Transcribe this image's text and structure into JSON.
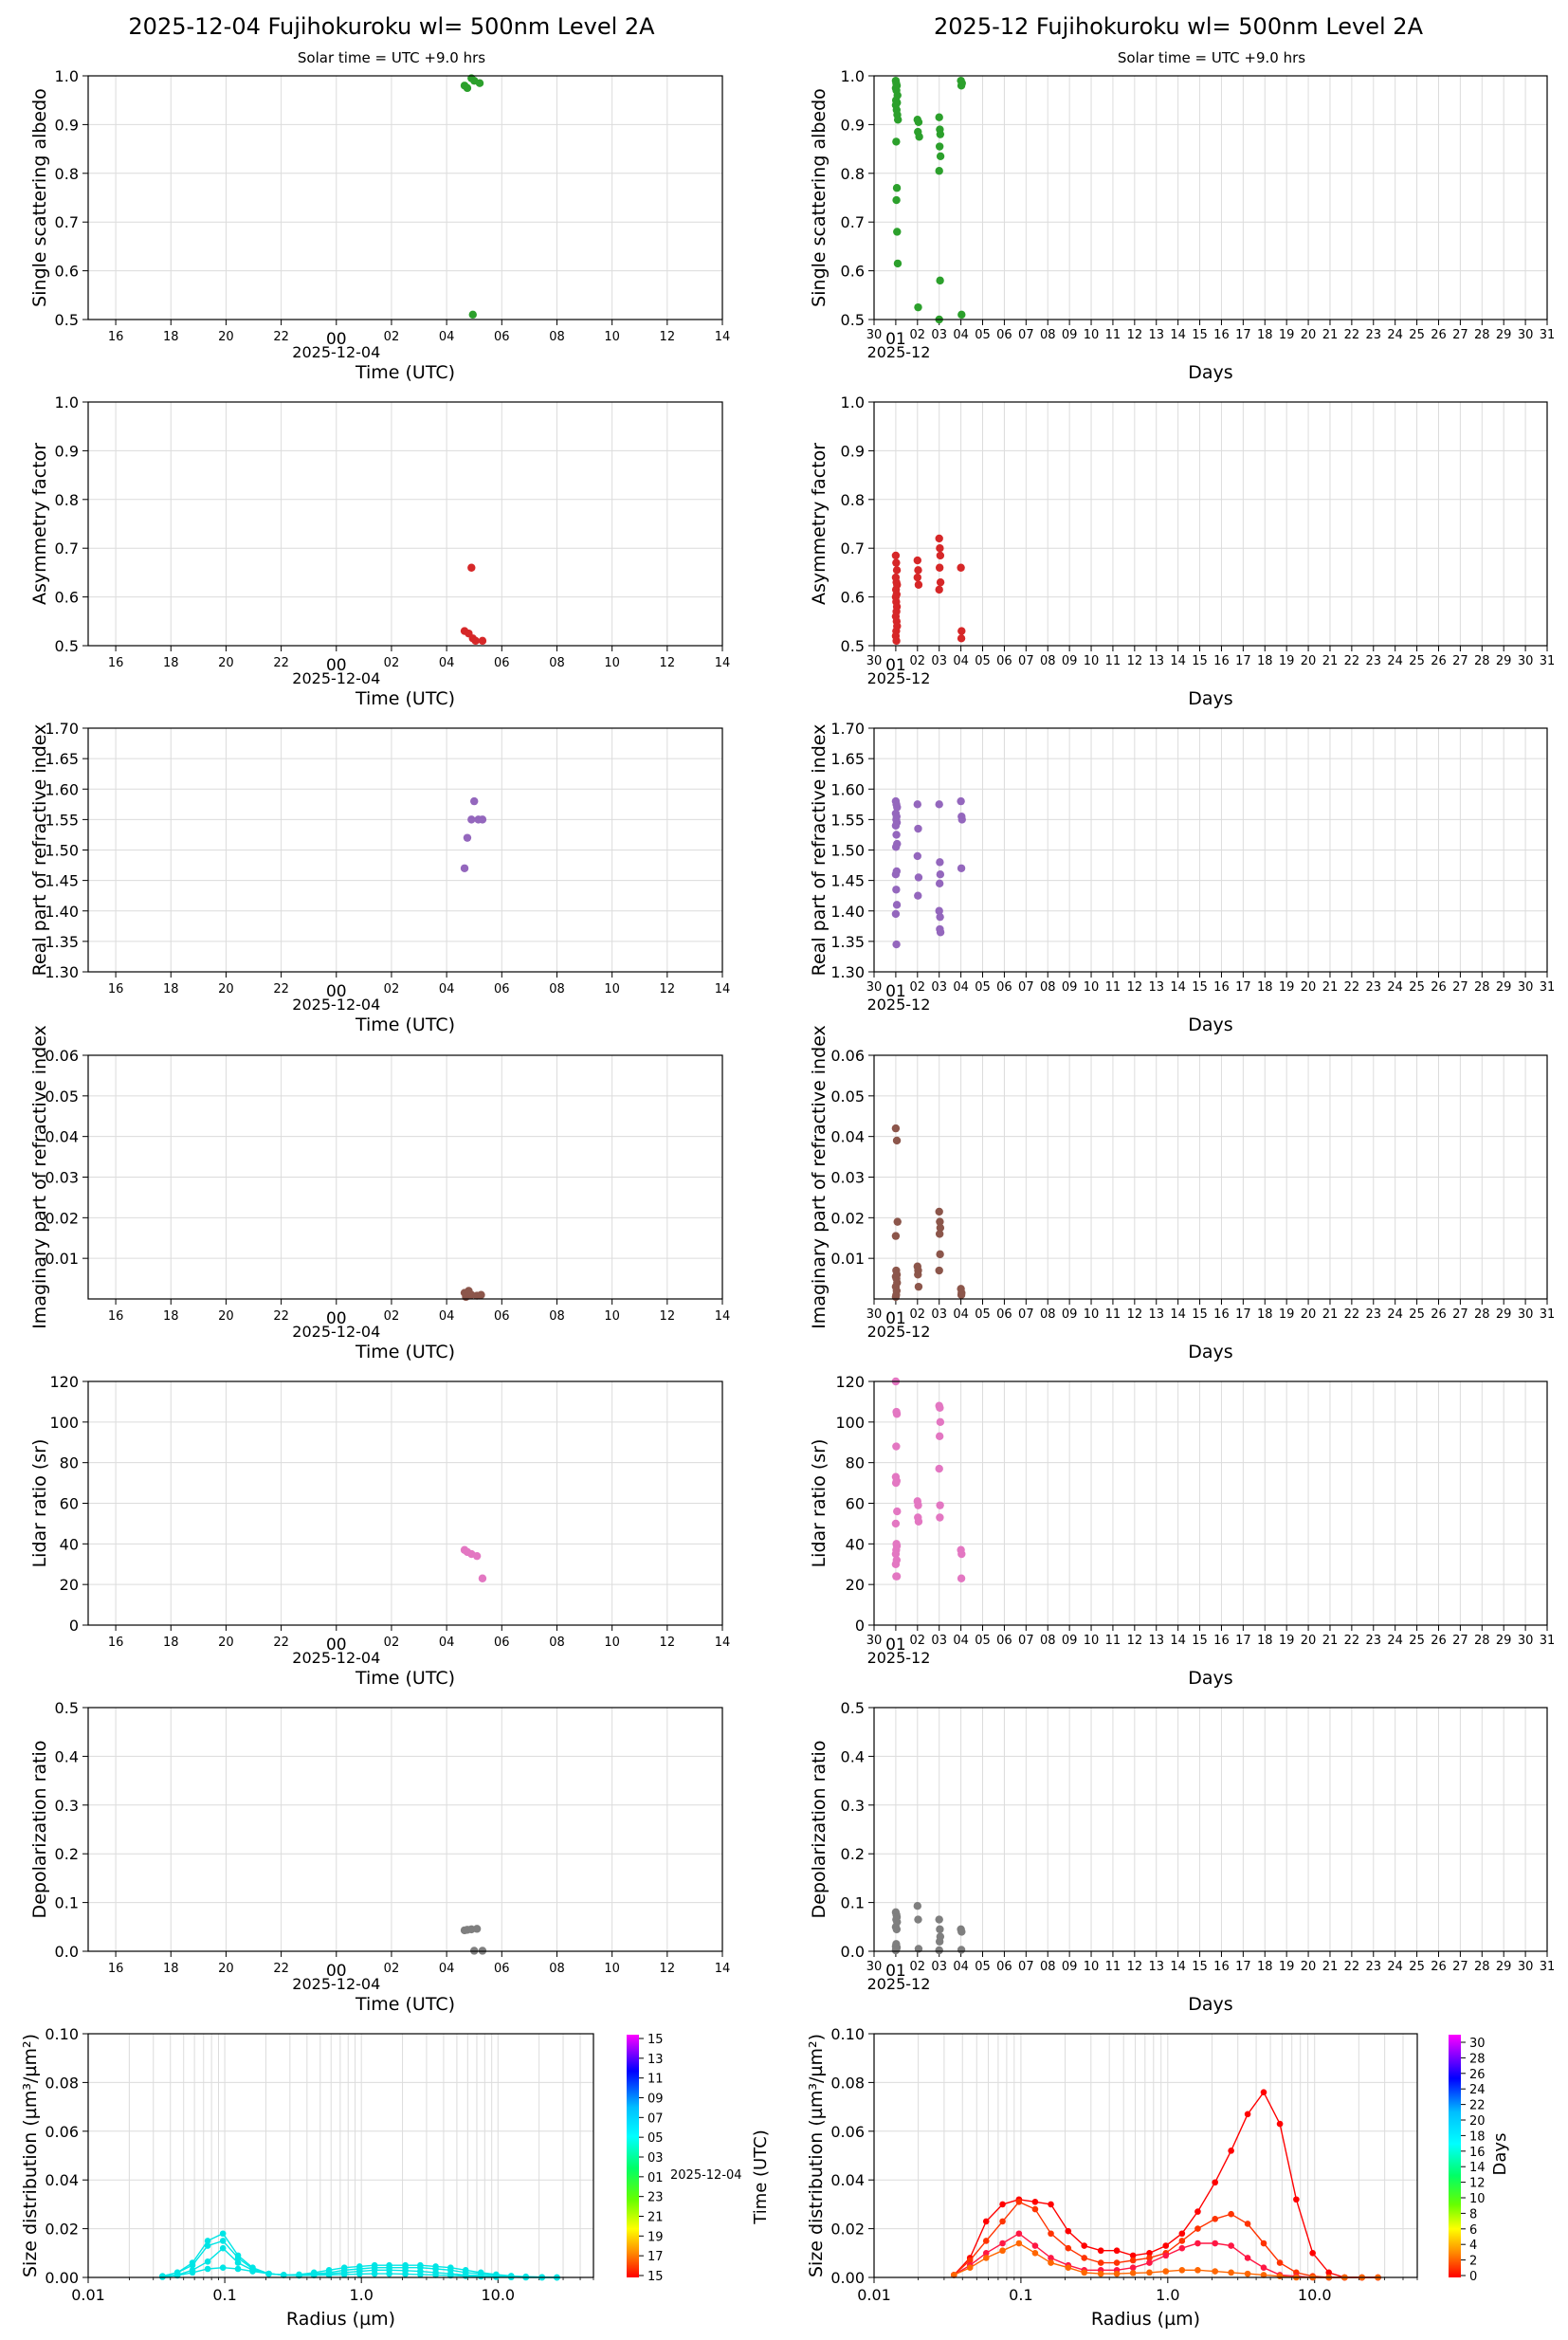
{
  "left_title": "2025-12-04  Fujihokuroku  wl= 500nm  Level 2A",
  "right_title": "2025-12  Fujihokuroku  wl= 500nm  Level 2A",
  "left_subtitle": "Solar time = UTC +9.0 hrs",
  "right_subtitle": "Solar time = UTC +9.0 hrs",
  "left_date_label": "2025-12-04",
  "right_month_label": "2025-12",
  "left_xlabel": "Time (UTC)",
  "right_xlabel": "Days",
  "hour_ticks": [
    "16",
    "18",
    "20",
    "22",
    "00",
    "02",
    "04",
    "06",
    "08",
    "10",
    "12",
    "14"
  ],
  "day_ticks": [
    "30",
    "01",
    "02",
    "03",
    "04",
    "05",
    "06",
    "07",
    "08",
    "09",
    "10",
    "11",
    "12",
    "13",
    "14",
    "15",
    "16",
    "17",
    "18",
    "19",
    "20",
    "21",
    "22",
    "23",
    "24",
    "25",
    "26",
    "27",
    "28",
    "29",
    "30",
    "31"
  ],
  "colors": {
    "ssa": "#2ca02c",
    "asy": "#d62728",
    "rri": "#9467bd",
    "iri": "#8c564b",
    "lidar": "#e377c2",
    "depol": "#7f7f7f",
    "cyan": "#00e5e5"
  },
  "chart_data": [
    {
      "id": "left-ssa",
      "type": "scatter",
      "ylabel": "Single scattering albedo",
      "ylim": [
        0.5,
        1.0
      ],
      "yticks": [
        "0.5",
        "0.6",
        "0.7",
        "0.8",
        "0.9",
        "1.0"
      ],
      "x_hours": [
        4.65,
        4.75,
        4.9,
        5.0,
        5.2,
        4.95
      ],
      "values": [
        0.98,
        0.975,
        0.995,
        0.99,
        0.985,
        0.51
      ]
    },
    {
      "id": "right-ssa",
      "type": "scatter",
      "ylabel": "Single scattering albedo",
      "ylim": [
        0.5,
        1.0
      ],
      "yticks": [
        "0.5",
        "0.6",
        "0.7",
        "0.8",
        "0.9",
        "1.0"
      ],
      "x_days": [
        1.0,
        1.02,
        1.05,
        1.0,
        1.03,
        1.08,
        1.01,
        1.06,
        1.0,
        1.04,
        1.07,
        1.1,
        1.02,
        1.05,
        1.03,
        1.06,
        1.09,
        2.0,
        2.05,
        2.02,
        2.08,
        2.03,
        3.0,
        3.03,
        3.05,
        3.02,
        3.06,
        3.0,
        3.04,
        3.0,
        4.0,
        4.05,
        4.02,
        4.03
      ],
      "values": [
        0.99,
        0.985,
        0.98,
        0.975,
        0.97,
        0.96,
        0.95,
        0.945,
        0.94,
        0.93,
        0.92,
        0.91,
        0.865,
        0.77,
        0.745,
        0.68,
        0.615,
        0.91,
        0.905,
        0.885,
        0.875,
        0.525,
        0.915,
        0.89,
        0.88,
        0.855,
        0.835,
        0.805,
        0.58,
        0.5,
        0.99,
        0.985,
        0.98,
        0.51
      ]
    },
    {
      "id": "left-asy",
      "type": "scatter",
      "ylabel": "Asymmetry factor",
      "ylim": [
        0.5,
        1.0
      ],
      "yticks": [
        "0.5",
        "0.6",
        "0.7",
        "0.8",
        "0.9",
        "1.0"
      ],
      "x_hours": [
        4.65,
        4.8,
        4.95,
        5.05,
        5.3,
        4.9
      ],
      "values": [
        0.53,
        0.525,
        0.515,
        0.51,
        0.51,
        0.66
      ]
    },
    {
      "id": "right-asy",
      "type": "scatter",
      "ylabel": "Asymmetry factor",
      "ylim": [
        0.5,
        1.0
      ],
      "yticks": [
        "0.5",
        "0.6",
        "0.7",
        "0.8",
        "0.9",
        "1.0"
      ],
      "x_days": [
        1.0,
        1.02,
        1.05,
        1.0,
        1.03,
        1.06,
        1.01,
        1.04,
        1.0,
        1.02,
        1.05,
        1.03,
        1.0,
        1.04,
        1.06,
        1.02,
        1.0,
        1.03,
        2.0,
        2.03,
        2.0,
        2.05,
        3.0,
        3.03,
        3.05,
        3.02,
        3.06,
        3.0,
        4.0,
        4.03,
        4.02
      ],
      "values": [
        0.685,
        0.67,
        0.655,
        0.64,
        0.63,
        0.625,
        0.615,
        0.605,
        0.6,
        0.59,
        0.58,
        0.57,
        0.56,
        0.55,
        0.54,
        0.53,
        0.52,
        0.51,
        0.675,
        0.655,
        0.64,
        0.625,
        0.72,
        0.7,
        0.685,
        0.66,
        0.63,
        0.615,
        0.66,
        0.53,
        0.515
      ]
    },
    {
      "id": "left-rri",
      "type": "scatter",
      "ylabel": "Real part of refractive index",
      "ylim": [
        1.3,
        1.7
      ],
      "yticks": [
        "1.30",
        "1.35",
        "1.40",
        "1.45",
        "1.50",
        "1.55",
        "1.60",
        "1.65",
        "1.70"
      ],
      "x_hours": [
        4.65,
        4.75,
        4.9,
        5.0,
        5.15,
        5.3
      ],
      "values": [
        1.47,
        1.52,
        1.55,
        1.58,
        1.55,
        1.55
      ]
    },
    {
      "id": "right-rri",
      "type": "scatter",
      "ylabel": "Real part of refractive index",
      "ylim": [
        1.3,
        1.7
      ],
      "yticks": [
        "1.30",
        "1.35",
        "1.40",
        "1.45",
        "1.50",
        "1.55",
        "1.60",
        "1.65",
        "1.70"
      ],
      "x_days": [
        1.0,
        1.03,
        1.06,
        1.0,
        1.04,
        1.02,
        1.05,
        1.0,
        1.03,
        1.06,
        1.01,
        1.04,
        1.0,
        1.02,
        1.05,
        1.0,
        1.03,
        2.0,
        2.03,
        2.0,
        2.05,
        2.02,
        3.0,
        3.03,
        3.05,
        3.02,
        3.0,
        3.04,
        3.03,
        3.06,
        4.0,
        4.03,
        4.05,
        4.02
      ],
      "values": [
        1.58,
        1.575,
        1.57,
        1.56,
        1.555,
        1.55,
        1.545,
        1.54,
        1.525,
        1.51,
        1.505,
        1.465,
        1.46,
        1.435,
        1.41,
        1.395,
        1.345,
        1.575,
        1.535,
        1.49,
        1.455,
        1.425,
        1.575,
        1.48,
        1.46,
        1.445,
        1.4,
        1.39,
        1.37,
        1.365,
        1.58,
        1.555,
        1.55,
        1.47
      ]
    },
    {
      "id": "left-iri",
      "type": "scatter",
      "ylabel": "Imaginary part of refractive index",
      "ylim": [
        0,
        0.06
      ],
      "yticks": [
        "0.01",
        "0.02",
        "0.03",
        "0.04",
        "0.05",
        "0.06"
      ],
      "x_hours": [
        4.65,
        4.8,
        4.9,
        5.1,
        5.25,
        4.7
      ],
      "values": [
        0.0015,
        0.002,
        0.001,
        0.0008,
        0.001,
        0.0005
      ]
    },
    {
      "id": "right-iri",
      "type": "scatter",
      "ylabel": "Imaginary part of refractive index",
      "ylim": [
        0,
        0.06
      ],
      "yticks": [
        "0.01",
        "0.02",
        "0.03",
        "0.04",
        "0.05",
        "0.06"
      ],
      "x_days": [
        1.0,
        1.05,
        1.0,
        1.08,
        1.02,
        1.05,
        1.0,
        1.03,
        1.06,
        1.0,
        1.04,
        1.02,
        1.0,
        2.0,
        2.03,
        2.02,
        2.05,
        3.0,
        3.03,
        3.05,
        3.02,
        3.04,
        3.0,
        4.0,
        4.03,
        4.02
      ],
      "values": [
        0.042,
        0.039,
        0.0155,
        0.019,
        0.007,
        0.006,
        0.0055,
        0.005,
        0.004,
        0.003,
        0.002,
        0.001,
        0.0005,
        0.008,
        0.007,
        0.006,
        0.003,
        0.0215,
        0.019,
        0.0175,
        0.016,
        0.011,
        0.007,
        0.0025,
        0.0015,
        0.001
      ]
    },
    {
      "id": "left-lidar",
      "type": "scatter",
      "ylabel": "Lidar ratio (sr)",
      "ylim": [
        0,
        120
      ],
      "yticks": [
        "0",
        "20",
        "40",
        "60",
        "80",
        "100",
        "120"
      ],
      "x_hours": [
        4.65,
        4.75,
        4.9,
        5.1,
        5.3
      ],
      "values": [
        37,
        36,
        35,
        34,
        23
      ]
    },
    {
      "id": "right-lidar",
      "type": "scatter",
      "ylabel": "Lidar ratio (sr)",
      "ylim": [
        0,
        120
      ],
      "yticks": [
        "0",
        "20",
        "40",
        "60",
        "80",
        "100",
        "120"
      ],
      "x_days": [
        1.0,
        1.03,
        1.05,
        1.02,
        1.0,
        1.04,
        1.01,
        1.06,
        1.0,
        1.03,
        1.05,
        1.02,
        1.0,
        1.04,
        1.0,
        1.02,
        1.05,
        2.0,
        2.03,
        2.02,
        2.05,
        3.0,
        3.03,
        3.05,
        3.02,
        3.0,
        3.04,
        3.03,
        4.0,
        4.03,
        4.02
      ],
      "values": [
        120,
        105,
        104,
        88,
        73,
        71,
        70,
        56,
        50,
        40,
        39,
        37,
        35,
        32,
        30,
        24,
        24,
        61,
        59,
        53,
        51,
        108,
        107,
        100,
        93,
        77,
        59,
        53,
        37,
        35,
        23
      ]
    },
    {
      "id": "left-depol",
      "type": "scatter",
      "ylabel": "Depolarization ratio",
      "ylim": [
        0,
        0.5
      ],
      "yticks": [
        "0.0",
        "0.1",
        "0.2",
        "0.3",
        "0.4",
        "0.5"
      ],
      "x_hours": [
        4.65,
        4.75,
        4.9,
        5.1,
        5.0,
        5.3
      ],
      "values": [
        0.043,
        0.044,
        0.045,
        0.046,
        0.001,
        0.001
      ]
    },
    {
      "id": "right-depol",
      "type": "scatter",
      "ylabel": "Depolarization ratio",
      "ylim": [
        0,
        0.5
      ],
      "yticks": [
        "0.0",
        "0.1",
        "0.2",
        "0.3",
        "0.4",
        "0.5"
      ],
      "x_days": [
        1.0,
        1.03,
        1.05,
        1.02,
        1.06,
        1.0,
        1.04,
        1.02,
        1.0,
        1.05,
        1.03,
        1.0,
        2.0,
        2.03,
        2.05,
        3.0,
        3.03,
        3.05,
        3.02,
        3.0,
        4.0,
        4.03,
        4.02
      ],
      "values": [
        0.08,
        0.075,
        0.07,
        0.065,
        0.06,
        0.05,
        0.045,
        0.015,
        0.01,
        0.008,
        0.005,
        0.002,
        0.093,
        0.065,
        0.005,
        0.065,
        0.045,
        0.03,
        0.02,
        0.002,
        0.045,
        0.04,
        0.003
      ]
    },
    {
      "id": "left-size",
      "type": "line",
      "xscale": "log",
      "ylabel": "Size distribution (µm³/µm²)",
      "xlabel": "Radius (µm)",
      "xlim": [
        0.01,
        50
      ],
      "ylim": [
        0,
        0.1
      ],
      "xticks": [
        "0.01",
        "0.1",
        "1.0",
        "10.0"
      ],
      "yticks": [
        "0.00",
        "0.02",
        "0.04",
        "0.06",
        "0.08",
        "0.10"
      ],
      "x": [
        0.035,
        0.045,
        0.058,
        0.075,
        0.097,
        0.125,
        0.16,
        0.21,
        0.27,
        0.35,
        0.45,
        0.58,
        0.75,
        0.97,
        1.25,
        1.6,
        2.1,
        2.7,
        3.5,
        4.5,
        5.8,
        7.5,
        9.7,
        12.5,
        16,
        21,
        27
      ],
      "series": [
        {
          "values": [
            0.0005,
            0.002,
            0.006,
            0.015,
            0.018,
            0.009,
            0.004,
            0.0015,
            0.001,
            0.0012,
            0.002,
            0.003,
            0.004,
            0.0045,
            0.005,
            0.005,
            0.005,
            0.005,
            0.0045,
            0.004,
            0.003,
            0.002,
            0.0012,
            0.0006,
            0.0003,
            0.0001,
            0.0
          ]
        },
        {
          "values": [
            0.0005,
            0.002,
            0.005,
            0.013,
            0.015,
            0.008,
            0.0035,
            0.0015,
            0.001,
            0.001,
            0.0015,
            0.002,
            0.003,
            0.0035,
            0.004,
            0.004,
            0.004,
            0.004,
            0.0035,
            0.003,
            0.002,
            0.0015,
            0.001,
            0.0005,
            0.0002,
            0.0001,
            0.0
          ]
        },
        {
          "values": [
            0.0003,
            0.001,
            0.003,
            0.0065,
            0.012,
            0.006,
            0.003,
            0.0015,
            0.001,
            0.0008,
            0.0012,
            0.0015,
            0.002,
            0.0025,
            0.003,
            0.003,
            0.0028,
            0.0025,
            0.002,
            0.0015,
            0.001,
            0.0008,
            0.0005,
            0.0003,
            0.0001,
            0.0,
            0.0
          ]
        },
        {
          "values": [
            0.0002,
            0.0008,
            0.002,
            0.0035,
            0.004,
            0.0035,
            0.0025,
            0.0015,
            0.001,
            0.0008,
            0.0009,
            0.001,
            0.0012,
            0.0014,
            0.0015,
            0.0015,
            0.0014,
            0.0012,
            0.001,
            0.0008,
            0.0006,
            0.0004,
            0.0002,
            0.0001,
            0.0,
            0.0,
            0.0
          ]
        }
      ]
    },
    {
      "id": "right-size",
      "type": "line",
      "xscale": "log",
      "ylabel": "Size distribution (µm³/µm²)",
      "xlabel": "Radius (µm)",
      "xlim": [
        0.01,
        50
      ],
      "ylim": [
        0,
        0.1
      ],
      "xticks": [
        "0.01",
        "0.1",
        "1.0",
        "10.0"
      ],
      "yticks": [
        "0.00",
        "0.02",
        "0.04",
        "0.06",
        "0.08",
        "0.10"
      ],
      "x": [
        0.035,
        0.045,
        0.058,
        0.075,
        0.097,
        0.125,
        0.16,
        0.21,
        0.27,
        0.35,
        0.45,
        0.58,
        0.75,
        0.97,
        1.25,
        1.6,
        2.1,
        2.7,
        3.5,
        4.5,
        5.8,
        7.5,
        9.7,
        12.5,
        16,
        21,
        27
      ],
      "series": [
        {
          "color": "#ff0000",
          "values": [
            0.001,
            0.008,
            0.023,
            0.03,
            0.032,
            0.031,
            0.03,
            0.019,
            0.013,
            0.011,
            0.011,
            0.009,
            0.01,
            0.013,
            0.018,
            0.027,
            0.039,
            0.052,
            0.067,
            0.076,
            0.063,
            0.032,
            0.01,
            0.002,
            0.0,
            0.0,
            0.0
          ]
        },
        {
          "color": "#ff3300",
          "values": [
            0.001,
            0.007,
            0.015,
            0.023,
            0.031,
            0.028,
            0.018,
            0.012,
            0.008,
            0.006,
            0.006,
            0.007,
            0.008,
            0.01,
            0.015,
            0.02,
            0.024,
            0.026,
            0.022,
            0.014,
            0.006,
            0.002,
            0.0005,
            0.0,
            0.0,
            0.0,
            0.0
          ]
        },
        {
          "color": "#ff1744",
          "values": [
            0.001,
            0.005,
            0.01,
            0.014,
            0.018,
            0.013,
            0.008,
            0.005,
            0.003,
            0.003,
            0.003,
            0.004,
            0.006,
            0.009,
            0.012,
            0.014,
            0.014,
            0.013,
            0.008,
            0.004,
            0.001,
            0.0005,
            0.0,
            0.0,
            0.0,
            0.0,
            0.0
          ]
        },
        {
          "color": "#ff6600",
          "values": [
            0.001,
            0.004,
            0.008,
            0.011,
            0.014,
            0.01,
            0.006,
            0.004,
            0.002,
            0.0015,
            0.0015,
            0.0018,
            0.002,
            0.0025,
            0.003,
            0.003,
            0.0025,
            0.002,
            0.0015,
            0.001,
            0.0005,
            0.0,
            0.0,
            0.0,
            0.0,
            0.0,
            0.0
          ]
        }
      ]
    }
  ],
  "left_colorbar_ticks": [
    "15",
    "13",
    "11",
    "09",
    "07",
    "05",
    "03",
    "01",
    "23",
    "21",
    "19",
    "17",
    "15"
  ],
  "left_colorbar_date": "2025-12-04",
  "right_colorbar_ticks": [
    "30",
    "28",
    "26",
    "24",
    "22",
    "20",
    "18",
    "16",
    "14",
    "12",
    "10",
    "8",
    "6",
    "4",
    "2",
    "0"
  ],
  "right_colorbar_label": "Days",
  "right_side_label": "Time (UTC)"
}
